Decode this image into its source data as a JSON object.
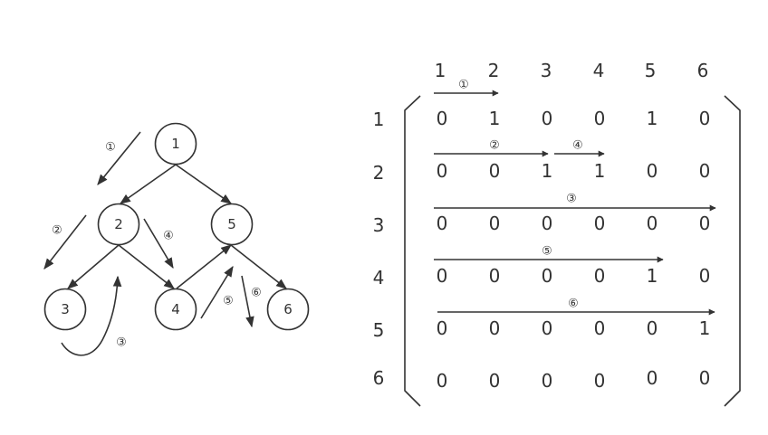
{
  "graph": {
    "nodes": [
      "1",
      "2",
      "5",
      "3",
      "4",
      "6"
    ],
    "edges": [
      [
        "1",
        "2"
      ],
      [
        "1",
        "5"
      ],
      [
        "2",
        "3"
      ],
      [
        "2",
        "4"
      ],
      [
        "5",
        "4"
      ],
      [
        "5",
        "6"
      ]
    ],
    "traversal_steps": [
      "①",
      "②",
      "③",
      "④",
      "⑤",
      "⑥"
    ]
  },
  "matrix": {
    "column_headers": [
      "1",
      "2",
      "3",
      "4",
      "5",
      "6"
    ],
    "row_headers": [
      "1",
      "2",
      "3",
      "4",
      "5",
      "6"
    ],
    "rows": [
      [
        "0",
        "1",
        "0",
        "0",
        "1",
        "0"
      ],
      [
        "0",
        "0",
        "1",
        "1",
        "0",
        "0"
      ],
      [
        "0",
        "0",
        "0",
        "0",
        "0",
        "0"
      ],
      [
        "0",
        "0",
        "0",
        "0",
        "1",
        "0"
      ],
      [
        "0",
        "0",
        "0",
        "0",
        "0",
        "1"
      ],
      [
        "0",
        "0",
        "0",
        "0",
        "0",
        "0"
      ]
    ],
    "scan_steps": [
      "①",
      "②",
      "④",
      "③",
      "⑤",
      "⑥"
    ]
  },
  "colors": {
    "stroke": "#333333",
    "background": "#ffffff"
  }
}
